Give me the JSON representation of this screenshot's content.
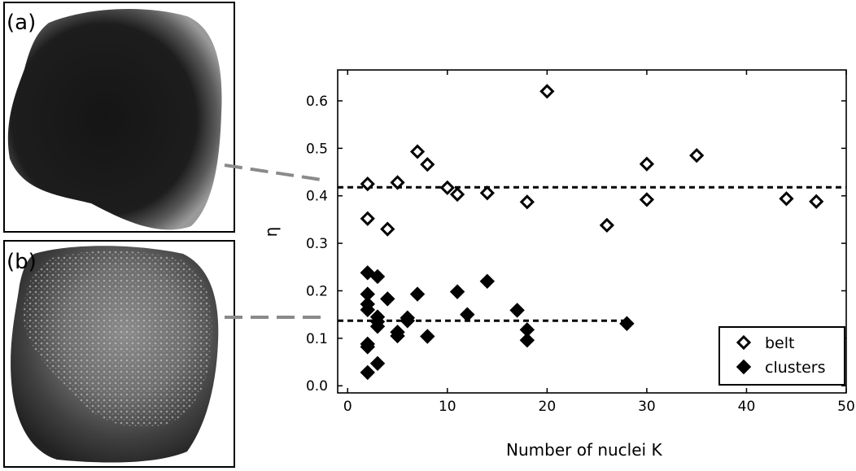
{
  "panels": [
    {
      "label": "(a)",
      "image": "dark colony with bright peripheral belt"
    },
    {
      "label": "(b)",
      "image": "colony with bright nucleus clusters"
    }
  ],
  "chart_data": {
    "type": "scatter",
    "title": "",
    "xlabel": "Number of nuclei  K",
    "ylabel": "η",
    "xlim": [
      -1,
      50
    ],
    "ylim": [
      -0.015,
      0.665
    ],
    "xticks": [
      0,
      10,
      20,
      30,
      40,
      50
    ],
    "yticks": [
      0.0,
      0.1,
      0.2,
      0.3,
      0.4,
      0.5,
      0.6
    ],
    "ytick_labels": [
      "0.0",
      "0.1",
      "0.2",
      "0.3",
      "0.4",
      "0.5",
      "0.6"
    ],
    "grid": false,
    "legend_position": "bottom-right",
    "series": [
      {
        "name": "belt",
        "marker": "open-diamond",
        "points": [
          [
            2,
            0.425
          ],
          [
            2,
            0.352
          ],
          [
            4,
            0.33
          ],
          [
            5,
            0.428
          ],
          [
            7,
            0.493
          ],
          [
            8,
            0.466
          ],
          [
            10,
            0.417
          ],
          [
            11,
            0.403
          ],
          [
            14,
            0.406
          ],
          [
            18,
            0.387
          ],
          [
            20,
            0.62
          ],
          [
            26,
            0.338
          ],
          [
            30,
            0.467
          ],
          [
            30,
            0.392
          ],
          [
            35,
            0.485
          ],
          [
            44,
            0.394
          ],
          [
            47,
            0.388
          ]
        ]
      },
      {
        "name": "clusters",
        "marker": "filled-diamond",
        "points": [
          [
            2,
            0.238
          ],
          [
            2,
            0.193
          ],
          [
            2,
            0.172
          ],
          [
            2,
            0.16
          ],
          [
            2,
            0.088
          ],
          [
            2,
            0.082
          ],
          [
            2,
            0.028
          ],
          [
            3,
            0.23
          ],
          [
            3,
            0.145
          ],
          [
            3,
            0.135
          ],
          [
            3,
            0.125
          ],
          [
            3,
            0.047
          ],
          [
            4,
            0.183
          ],
          [
            5,
            0.113
          ],
          [
            5,
            0.105
          ],
          [
            6,
            0.143
          ],
          [
            6,
            0.137
          ],
          [
            7,
            0.193
          ],
          [
            8,
            0.104
          ],
          [
            11,
            0.198
          ],
          [
            12,
            0.15
          ],
          [
            14,
            0.22
          ],
          [
            17,
            0.159
          ],
          [
            18,
            0.118
          ],
          [
            18,
            0.096
          ],
          [
            28,
            0.131
          ]
        ]
      }
    ],
    "reference_lines": [
      {
        "series": "belt",
        "y": 0.418,
        "x_range": [
          -1,
          50
        ],
        "style": "dashed"
      },
      {
        "series": "clusters",
        "y": 0.137,
        "x_range": [
          -1,
          28
        ],
        "style": "dashed"
      }
    ]
  }
}
